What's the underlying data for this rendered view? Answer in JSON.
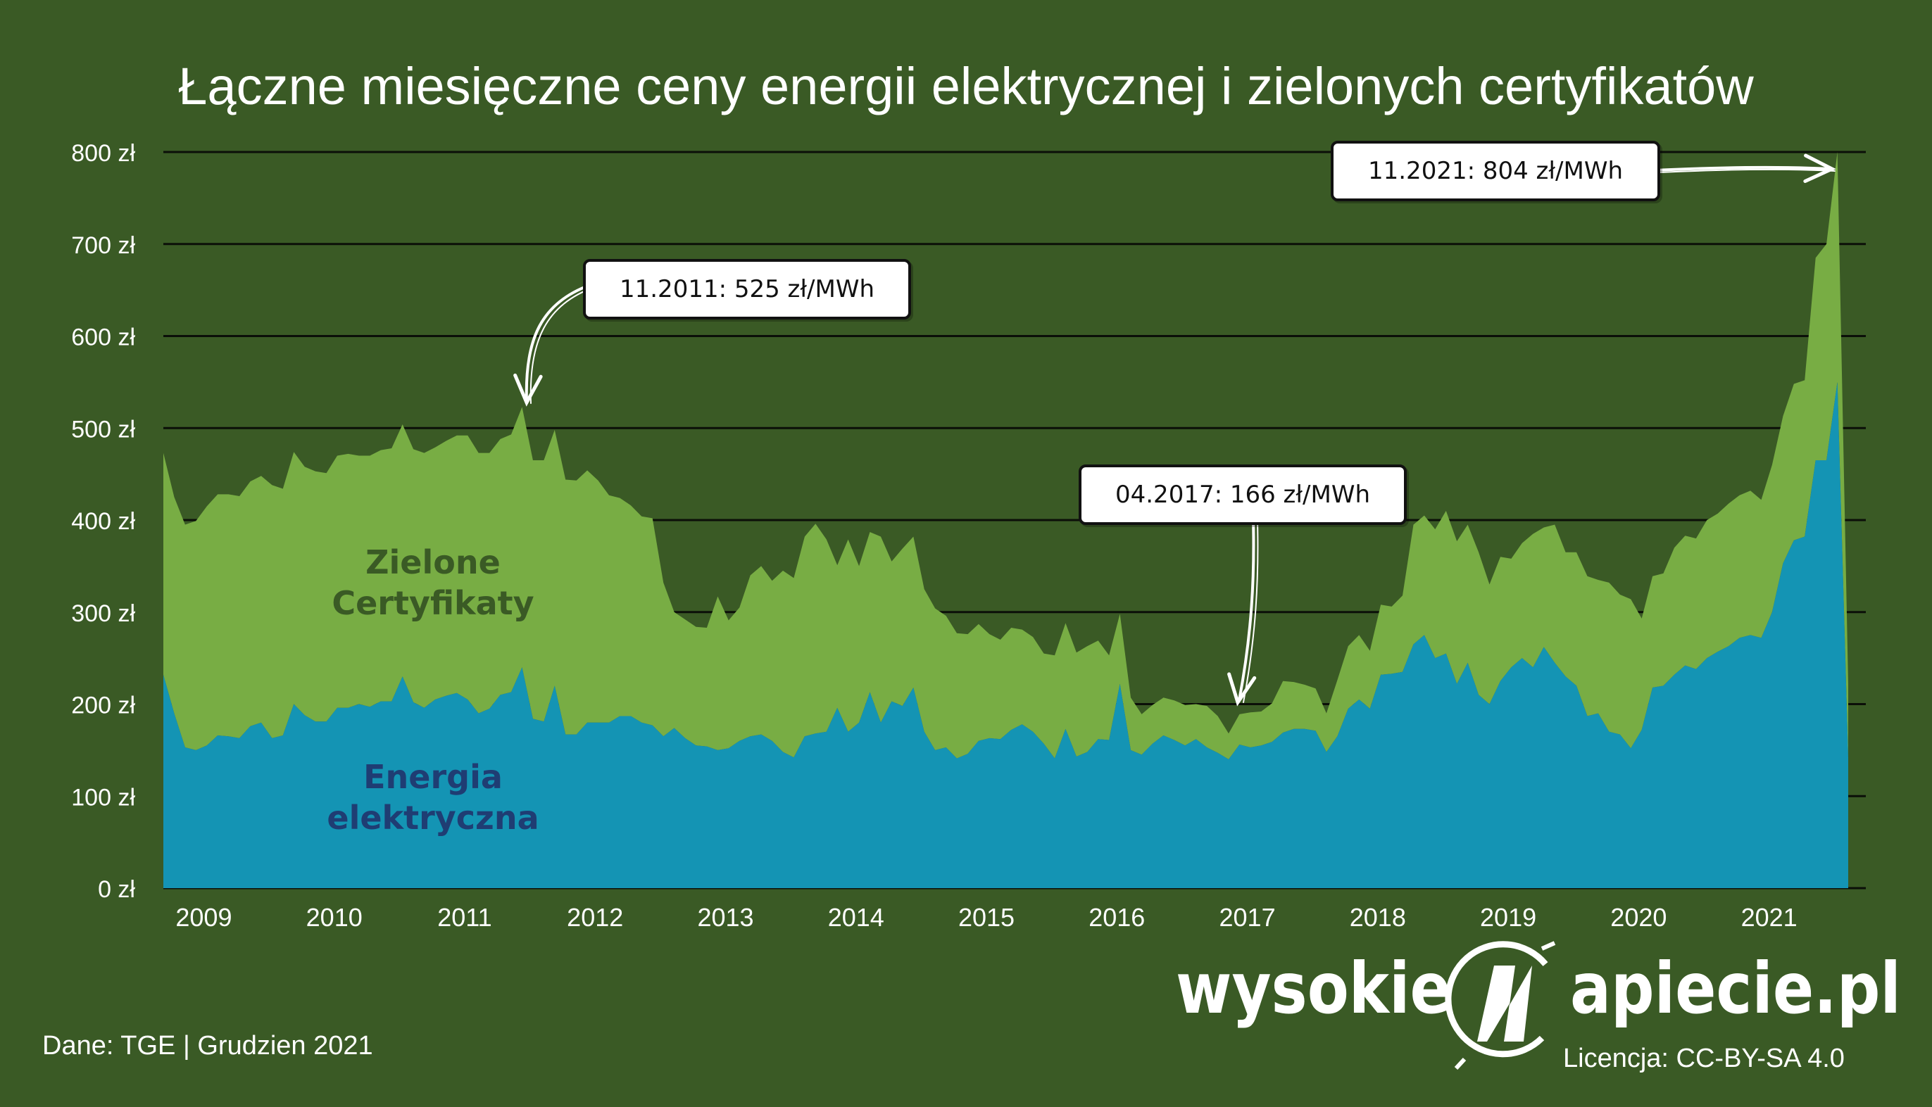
{
  "title": "Łączne miesięczne ceny energii elektrycznej i zielonych certyfikatów",
  "source": "Dane: TGE  |  Grudzien 2021",
  "license": "Licencja: CC-BY-SA 4.0",
  "logo": {
    "left": "wysokie",
    "right": "apiecie.pl"
  },
  "colors": {
    "background": "#3a5a25",
    "energy": "#1494b4",
    "certificates": "#78ad44",
    "label_certificates": "#3a5a25",
    "label_energy": "#1f3d73",
    "grid": "#000000"
  },
  "labels": {
    "certificates": [
      "Zielone",
      "Certyfikaty"
    ],
    "energy": [
      "Energia",
      "elektryczna"
    ]
  },
  "callouts": [
    {
      "id": "peak-2011",
      "text": "11.2011: 525 zł/MWh"
    },
    {
      "id": "low-2017",
      "text": "04.2017: 166 zł/MWh"
    },
    {
      "id": "peak-2021",
      "text": "11.2021: 804 zł/MWh"
    }
  ],
  "chart_data": {
    "type": "area",
    "stacked": true,
    "title": "Łączne miesięczne ceny energii elektrycznej i zielonych certyfikatów",
    "xlabel": "",
    "ylabel": "",
    "ylim": [
      0,
      800
    ],
    "yticks": [
      "0 zł",
      "100 zł",
      "200 zł",
      "300 zł",
      "400 zł",
      "500 zł",
      "600 zł",
      "700 zł",
      "800 zł"
    ],
    "xticks": [
      "2009",
      "2010",
      "2011",
      "2012",
      "2013",
      "2014",
      "2015",
      "2016",
      "2017",
      "2018",
      "2019",
      "2020",
      "2021"
    ],
    "grid": true,
    "legend": "none",
    "series": [
      {
        "name": "Energia elektryczna",
        "color": "#1494b4",
        "values": [
          232,
          190,
          153,
          150,
          155,
          166,
          165,
          163,
          176,
          180,
          163,
          166,
          200,
          188,
          181,
          181,
          196,
          196,
          200,
          197,
          203,
          203,
          230,
          202,
          196,
          205,
          209,
          212,
          205,
          190,
          195,
          210,
          213,
          240,
          184,
          181,
          220,
          167,
          167,
          180,
          180,
          180,
          187,
          187,
          180,
          177,
          165,
          174,
          163,
          155,
          154,
          150,
          152,
          160,
          165,
          167,
          160,
          148,
          142,
          165,
          168,
          170,
          196,
          170,
          180,
          213,
          180,
          203,
          198,
          218,
          170,
          150,
          153,
          141,
          146,
          160,
          163,
          162,
          172,
          178,
          170,
          157,
          141,
          173,
          143,
          148,
          162,
          161,
          222,
          150,
          145,
          157,
          166,
          161,
          155,
          162,
          153,
          147,
          140,
          156,
          153,
          155,
          159,
          169,
          173,
          173,
          171,
          148,
          165,
          195,
          205,
          195,
          232,
          233,
          235,
          265,
          275,
          250,
          255,
          222,
          245,
          210,
          200,
          225,
          240,
          250,
          240,
          262,
          245,
          230,
          220,
          187,
          190,
          170,
          167,
          152,
          172,
          218,
          220,
          232,
          242,
          238,
          250,
          257,
          263,
          272,
          275,
          272,
          300,
          353,
          378,
          382,
          465,
          465,
          550,
          142
        ]
      },
      {
        "name": "Zielone Certyfikaty",
        "color": "#78ad44",
        "values": [
          241,
          235,
          242,
          249,
          260,
          262,
          263,
          263,
          266,
          268,
          275,
          268,
          274,
          270,
          272,
          270,
          274,
          276,
          270,
          273,
          273,
          275,
          274,
          275,
          277,
          274,
          277,
          280,
          287,
          283,
          278,
          278,
          280,
          283,
          281,
          284,
          278,
          277,
          276,
          274,
          263,
          247,
          237,
          229,
          224,
          225,
          167,
          126,
          129,
          129,
          129,
          167,
          139,
          145,
          175,
          183,
          174,
          197,
          195,
          217,
          228,
          209,
          155,
          209,
          170,
          174,
          202,
          152,
          171,
          164,
          155,
          154,
          143,
          136,
          130,
          127,
          113,
          108,
          111,
          103,
          103,
          98,
          112,
          115,
          113,
          115,
          107,
          92,
          76,
          57,
          44,
          42,
          41,
          43,
          44,
          38,
          45,
          40,
          28,
          33,
          38,
          37,
          42,
          56,
          51,
          48,
          46,
          42,
          61,
          68,
          70,
          63,
          76,
          73,
          83,
          130,
          130,
          140,
          155,
          155,
          150,
          155,
          130,
          135,
          118,
          125,
          145,
          130,
          150,
          135,
          145,
          152,
          145,
          162,
          152,
          162,
          121,
          121,
          122,
          138,
          141,
          142,
          150,
          150,
          155,
          155,
          157,
          150,
          160,
          160,
          170,
          170,
          220,
          235,
          250,
          80
        ]
      }
    ],
    "x_start": "2008-12",
    "x_step": "month"
  }
}
